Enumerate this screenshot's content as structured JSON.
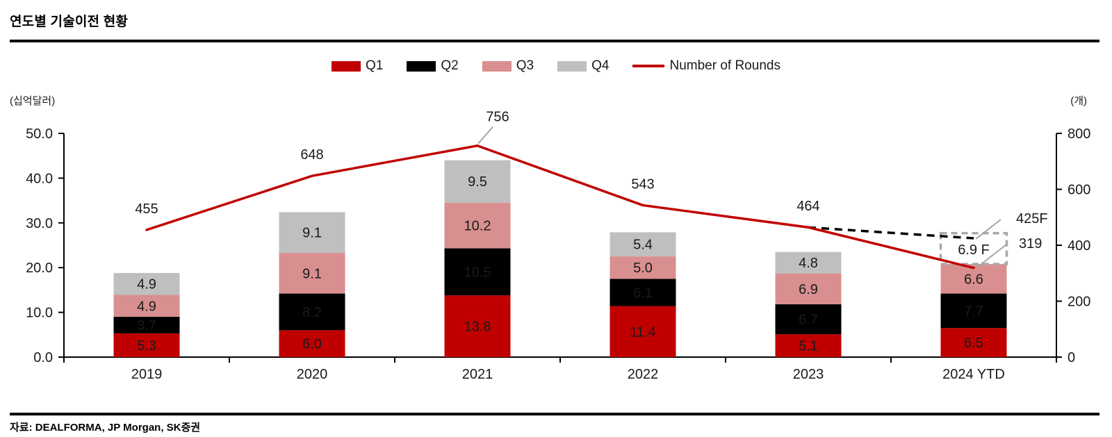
{
  "header": {
    "title": "연도별 기술이전 현황"
  },
  "footer": {
    "source": "자료: DEALFORMA, JP Morgan, SK증권"
  },
  "axis_units": {
    "left": "(십억달러)",
    "right": "(개)"
  },
  "colors": {
    "q1_red": "#C00000",
    "q2_black": "#000000",
    "q3_pink": "#D98F8F",
    "q4_gray": "#BFBFBF",
    "rounds_line": "#C00000",
    "forecast_dash": "#000000",
    "leader_gray": "#A6A6A6",
    "axis": "#000000"
  },
  "legend": [
    {
      "label": "Q1",
      "color": "#C00000",
      "type": "box"
    },
    {
      "label": "Q2",
      "color": "#000000",
      "type": "box"
    },
    {
      "label": "Q3",
      "color": "#D98F8F",
      "type": "box"
    },
    {
      "label": "Q4",
      "color": "#BFBFBF",
      "type": "box"
    },
    {
      "label": "Number of Rounds",
      "color": "#C00000",
      "type": "line"
    }
  ],
  "chart_data": {
    "type": "bar",
    "subtype": "stacked-bars-with-line",
    "title": "연도별 기술이전 현황",
    "categories": [
      "2019",
      "2020",
      "2021",
      "2022",
      "2023",
      "2024 YTD"
    ],
    "series": [
      {
        "name": "Q1",
        "color": "#C00000",
        "text_color": "#111111",
        "values": [
          5.3,
          6.0,
          13.8,
          11.4,
          5.1,
          6.5
        ]
      },
      {
        "name": "Q2",
        "color": "#000000",
        "text_color": "#FFFFFF",
        "values": [
          3.7,
          8.2,
          10.5,
          6.1,
          6.7,
          7.7
        ]
      },
      {
        "name": "Q3",
        "color": "#D98F8F",
        "text_color": "#111111",
        "values": [
          4.9,
          9.1,
          10.2,
          5.0,
          6.9,
          6.6
        ]
      },
      {
        "name": "Q4",
        "color": "#BFBFBF",
        "text_color": "#111111",
        "values": [
          4.9,
          9.1,
          9.5,
          5.4,
          4.8,
          null
        ]
      }
    ],
    "forecast_box": {
      "category_index": 5,
      "value": 6.9,
      "label": "6.9 F",
      "border_color": "#A9A9A9"
    },
    "line_series": {
      "name": "Number of Rounds",
      "color": "#C00000",
      "axis": "right",
      "values": [
        455,
        648,
        756,
        543,
        464,
        319
      ],
      "point_labels": [
        "455",
        "648",
        "756",
        "543",
        "464",
        "319"
      ]
    },
    "forecast_line": {
      "from_index": 4,
      "from_value": 464,
      "to_index": 5,
      "to_value": 425,
      "label": "425F",
      "color": "#000000"
    },
    "left_axis": {
      "unit": "(십억달러)",
      "range": [
        0,
        50
      ],
      "tick_values": [
        0,
        10,
        20,
        30,
        40,
        50
      ],
      "tick_labels": [
        "0.0",
        "10.0",
        "20.0",
        "30.0",
        "40.0",
        "50.0"
      ]
    },
    "right_axis": {
      "unit": "(개)",
      "range": [
        0,
        800
      ],
      "tick_values": [
        0,
        200,
        400,
        600,
        800
      ],
      "tick_labels": [
        "0",
        "200",
        "400",
        "600",
        "800"
      ]
    },
    "grid": false,
    "legend_position": "top-center"
  }
}
